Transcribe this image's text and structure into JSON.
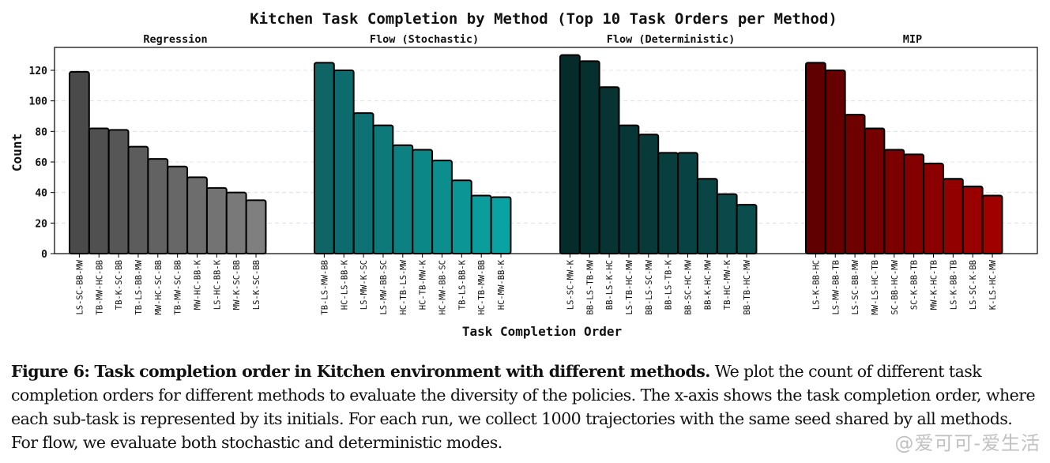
{
  "chart_data": {
    "type": "bar",
    "title": "Kitchen Task Completion by Method (Top 10 Task Orders per Method)",
    "xlabel": "Task Completion Order",
    "ylabel": "Count",
    "ylim": [
      0,
      135
    ],
    "yticks": [
      0,
      20,
      40,
      60,
      80,
      100,
      120
    ],
    "grid": true,
    "panels": [
      {
        "name": "Regression",
        "color_start": "#4a4a4a",
        "color_end": "#7f7f7f",
        "categories": [
          "LS-SC-BB-MW",
          "TB-MW-HC-BB",
          "TB-K-SC-BB",
          "TB-LS-BB-MW",
          "MW-HC-SC-BB",
          "TB-MW-SC-BB",
          "MW-HC-BB-K",
          "LS-HC-BB-K",
          "MW-K-SC-BB",
          "LS-K-SC-BB"
        ],
        "values": [
          119,
          82,
          81,
          70,
          62,
          57,
          50,
          43,
          40,
          35
        ]
      },
      {
        "name": "Flow (Stochastic)",
        "color_start": "#0f6466",
        "color_end": "#0aa3a3",
        "categories": [
          "TB-LS-MW-BB",
          "HC-LS-BB-K",
          "LS-MW-K-SC",
          "LS-MW-BB-SC",
          "HC-TB-LS-MW",
          "HC-TB-MW-K",
          "HC-MW-BB-SC",
          "TB-LS-BB-K",
          "HC-TB-MW-BB",
          "HC-MW-BB-K"
        ],
        "values": [
          125,
          120,
          92,
          84,
          71,
          68,
          61,
          48,
          38,
          37
        ]
      },
      {
        "name": "Flow (Deterministic)",
        "color_start": "#062b2b",
        "color_end": "#0a4d4d",
        "categories": [
          "LS-SC-MW-K",
          "BB-LS-TB-MW",
          "BB-LS-K-HC",
          "LS-TB-HC-MW",
          "BB-LS-SC-MW",
          "BB-LS-TB-K",
          "BB-SC-HC-MW",
          "BB-K-HC-MW",
          "TB-HC-MW-K",
          "BB-TB-HC-MW"
        ],
        "values": [
          130,
          126,
          109,
          84,
          78,
          66,
          66,
          49,
          39,
          32
        ]
      },
      {
        "name": "MIP",
        "color_start": "#600000",
        "color_end": "#a00000",
        "categories": [
          "LS-K-BB-HC",
          "LS-MW-BB-TB",
          "LS-SC-BB-MW",
          "MW-LS-HC-TB",
          "SC-BB-HC-MW",
          "SC-K-BB-TB",
          "MW-K-HC-TB",
          "LS-K-BB-TB",
          "LS-SC-K-BB",
          "K-LS-HC-MW"
        ],
        "values": [
          125,
          120,
          91,
          82,
          68,
          65,
          59,
          49,
          44,
          38
        ]
      }
    ]
  },
  "caption": {
    "label": "Figure 6:",
    "bold_text": "Task completion order in Kitchen environment with different methods.",
    "text": "We plot the count of different task completion orders for different methods to evaluate the diversity of the policies. The x-axis shows the task completion order, where each sub-task is represented by its initials. For each run, we collect 1000 trajectories with the same seed shared by all methods. For flow, we evaluate both stochastic and deterministic modes."
  },
  "watermark": "@爱可可-爱生活"
}
